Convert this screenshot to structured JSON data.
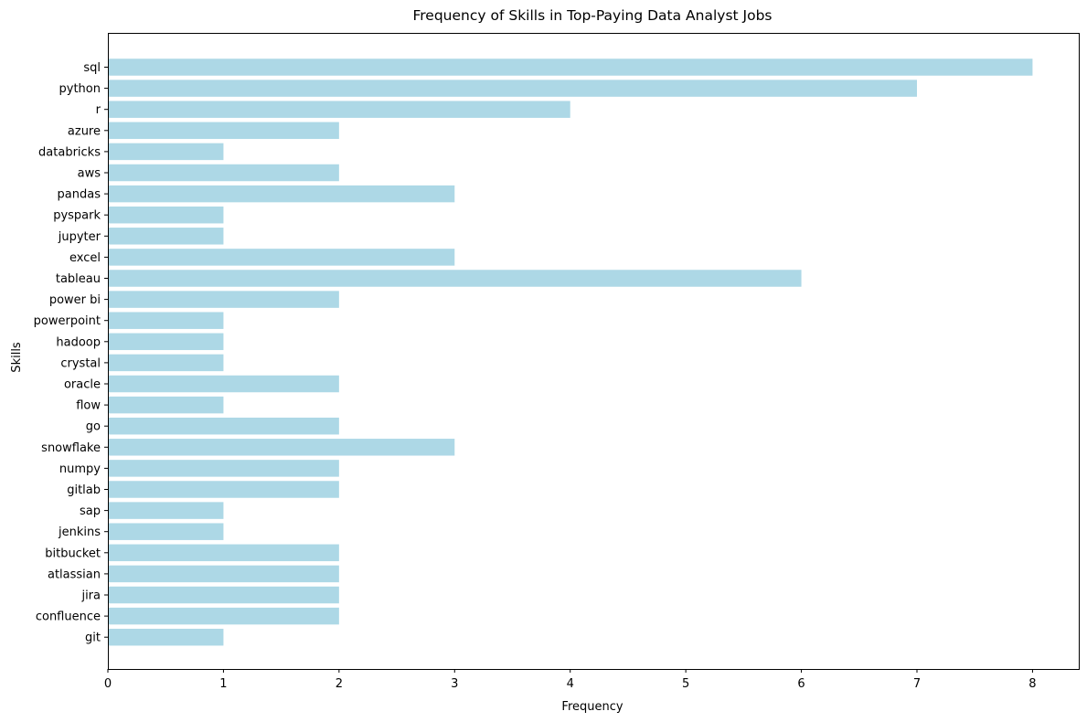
{
  "chart_data": {
    "type": "bar",
    "orientation": "horizontal",
    "title": "Frequency of Skills in Top-Paying Data Analyst Jobs",
    "xlabel": "Frequency",
    "ylabel": "Skills",
    "xlim": [
      0,
      8.4
    ],
    "xticks": [
      0,
      1,
      2,
      3,
      4,
      5,
      6,
      7,
      8
    ],
    "grid": false,
    "legend": "none",
    "bar_color": "#add8e6",
    "categories": [
      "sql",
      "python",
      "r",
      "azure",
      "databricks",
      "aws",
      "pandas",
      "pyspark",
      "jupyter",
      "excel",
      "tableau",
      "power bi",
      "powerpoint",
      "hadoop",
      "crystal",
      "oracle",
      "flow",
      "go",
      "snowflake",
      "numpy",
      "gitlab",
      "sap",
      "jenkins",
      "bitbucket",
      "atlassian",
      "jira",
      "confluence",
      "git"
    ],
    "values": [
      8,
      7,
      4,
      2,
      1,
      2,
      3,
      1,
      1,
      3,
      6,
      2,
      1,
      1,
      1,
      2,
      1,
      2,
      3,
      2,
      2,
      1,
      1,
      2,
      2,
      2,
      2,
      1
    ]
  }
}
